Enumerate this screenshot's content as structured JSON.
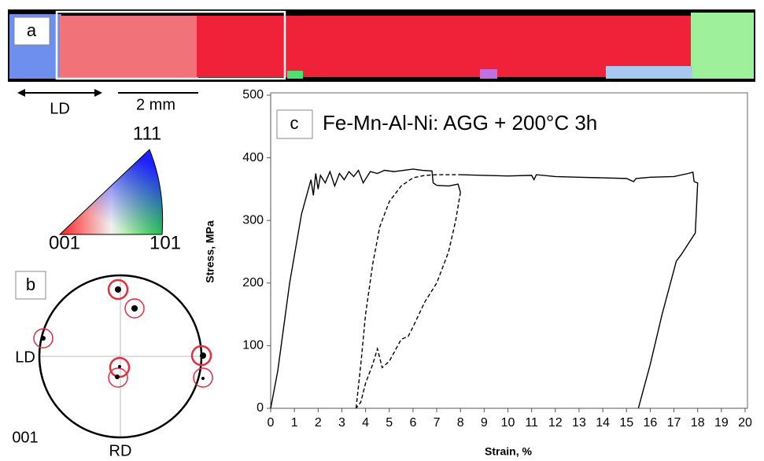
{
  "panel_a": {
    "label": "a",
    "direction": "LD",
    "scale_bar": "2 mm"
  },
  "ipf_key": {
    "top": "111",
    "left": "001",
    "right": "101"
  },
  "panel_b": {
    "label": "b",
    "direction_left": "LD",
    "direction_bottom": "RD",
    "plane": "001"
  },
  "chart_data": {
    "type": "line",
    "label": "c",
    "title": "Fe-Mn-Al-Ni: AGG + 200°C 3h",
    "x_label": "Strain, %",
    "y_label": "Stress, MPa",
    "xlim": [
      0,
      20
    ],
    "xticks": [
      0,
      1,
      2,
      3,
      4,
      5,
      6,
      7,
      8,
      9,
      10,
      11,
      12,
      13,
      14,
      15,
      16,
      17,
      18,
      19,
      20
    ],
    "ylim": [
      0,
      500
    ],
    "yticks": [
      0,
      100,
      200,
      300,
      400,
      500
    ],
    "series": [
      {
        "color": "#000000",
        "dashed": false,
        "x": [
          0,
          0.3,
          0.8,
          1.3,
          1.7,
          1.8,
          1.9,
          2.0,
          2.1,
          2.3,
          2.5,
          2.7,
          2.9,
          3.1,
          3.3,
          3.5,
          3.7,
          3.9,
          4.2,
          4.5,
          4.8,
          5.2,
          5.6,
          6.0,
          6.4,
          6.8,
          6.85,
          7.0,
          7.5,
          7.9,
          8.0
        ],
        "values": [
          0,
          60,
          200,
          310,
          365,
          340,
          375,
          350,
          372,
          360,
          378,
          355,
          375,
          365,
          378,
          370,
          380,
          360,
          378,
          375,
          380,
          378,
          380,
          382,
          380,
          379,
          360,
          356,
          355,
          358,
          345
        ]
      },
      {
        "color": "#000000",
        "dashed": true,
        "x": [
          8.0,
          7.8,
          7.5,
          7.0,
          6.5,
          6.0,
          5.8,
          5.5,
          5.0,
          4.7,
          4.5,
          4.3,
          4.0,
          3.8,
          3.6
        ],
        "values": [
          345,
          300,
          250,
          200,
          170,
          130,
          115,
          110,
          75,
          65,
          95,
          70,
          40,
          10,
          0
        ]
      },
      {
        "color": "#000000",
        "dashed": true,
        "x": [
          3.6,
          3.8,
          4.0,
          4.3,
          4.6,
          5.0,
          5.5,
          6.0,
          6.5,
          7.0,
          7.5,
          8.0
        ],
        "values": [
          0,
          70,
          150,
          230,
          290,
          330,
          355,
          368,
          372,
          373,
          373,
          373
        ]
      },
      {
        "color": "#000000",
        "dashed": false,
        "x": [
          8.0,
          9.0,
          10.0,
          11.0,
          11.1,
          11.2,
          12.0,
          13.0,
          14.0,
          15.0,
          15.3,
          15.4,
          16.0,
          17.0,
          17.6,
          17.8,
          17.85,
          18.0,
          17.9,
          17.3,
          17.1,
          16.5,
          16.0,
          15.5
        ],
        "values": [
          373,
          372,
          371,
          372,
          365,
          373,
          370,
          369,
          368,
          367,
          362,
          367,
          369,
          370,
          375,
          377,
          362,
          360,
          280,
          245,
          235,
          150,
          70,
          0
        ]
      }
    ]
  }
}
